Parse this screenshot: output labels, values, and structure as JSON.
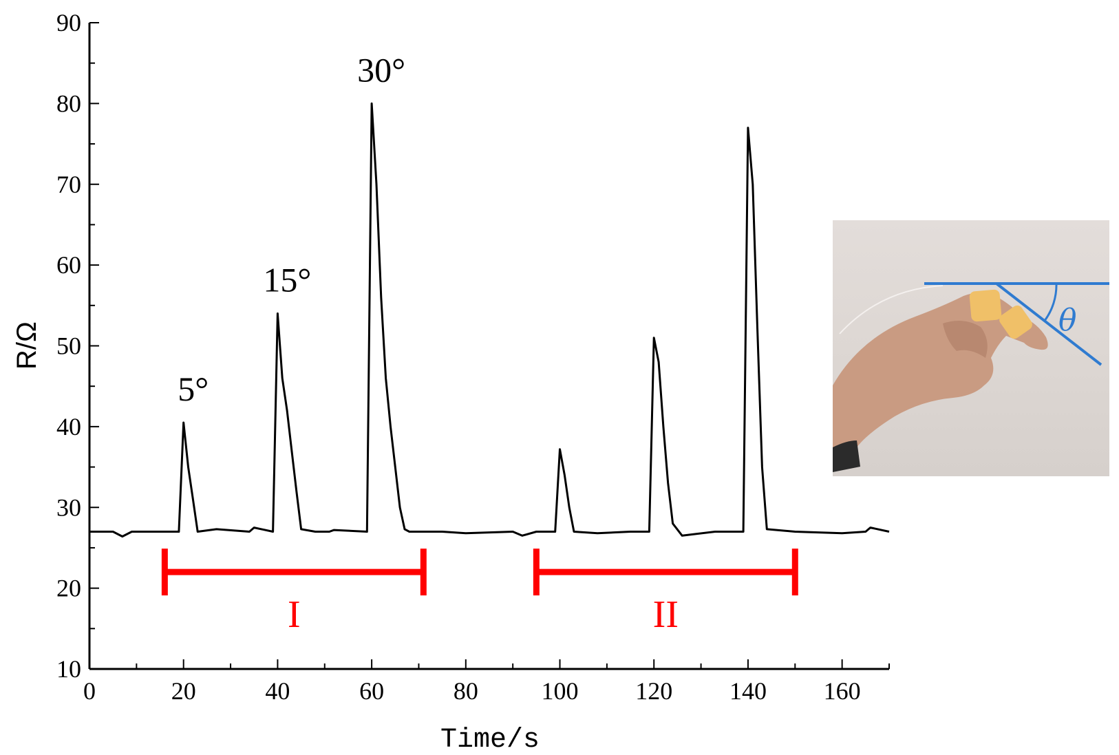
{
  "chart_data": {
    "type": "line",
    "xlabel": "Time/s",
    "ylabel": "R/Ω",
    "xlim": [
      0,
      170
    ],
    "ylim": [
      10,
      90
    ],
    "xticks": [
      0,
      20,
      40,
      60,
      80,
      100,
      120,
      140,
      160
    ],
    "yticks": [
      10,
      20,
      30,
      40,
      50,
      60,
      70,
      80,
      90
    ],
    "baseline": 27,
    "series": [
      {
        "x": [
          0,
          5,
          7,
          9,
          15,
          19,
          20,
          21,
          22,
          23,
          27,
          34,
          35,
          39,
          40,
          41,
          42,
          43,
          44,
          45,
          48,
          51,
          52,
          59,
          60,
          61,
          62,
          63,
          64,
          65,
          66,
          67,
          68,
          75,
          80,
          90,
          92,
          95,
          99,
          100,
          101,
          102,
          103,
          108,
          115,
          119,
          120,
          121,
          122,
          123,
          124,
          126,
          133,
          139,
          140,
          141,
          142,
          143,
          144,
          150,
          160,
          165,
          166,
          170
        ],
        "y": [
          27,
          27,
          26.4,
          27,
          27,
          27,
          40.5,
          35,
          31,
          27,
          27.3,
          27,
          27.5,
          27,
          54,
          46,
          42,
          37,
          32,
          27.3,
          27,
          27,
          27.2,
          27,
          80,
          70,
          56,
          46,
          40,
          35,
          30,
          27.3,
          27,
          27,
          26.8,
          27,
          26.5,
          27,
          27,
          37.2,
          34,
          30,
          27,
          26.8,
          27,
          27,
          51,
          48,
          40,
          33,
          28,
          26.5,
          27,
          27,
          77,
          70,
          52,
          35,
          27.3,
          27,
          26.8,
          27,
          27.5,
          27
        ]
      }
    ],
    "annotations": [
      {
        "text": "5°",
        "x": 20,
        "y": 40.5
      },
      {
        "text": "15°",
        "x": 40,
        "y": 54
      },
      {
        "text": "30°",
        "x": 60,
        "y": 80
      }
    ],
    "groups": [
      {
        "label": "I",
        "x_start": 16,
        "x_end": 71,
        "y": 22
      },
      {
        "label": "II",
        "x_start": 95,
        "x_end": 150,
        "y": 22
      }
    ],
    "colors": {
      "line": "#000000",
      "group": "#ff0000",
      "inset_line": "#2f7bd0",
      "tape": "#f0c068"
    }
  },
  "inset": {
    "angle_symbol": "θ"
  }
}
